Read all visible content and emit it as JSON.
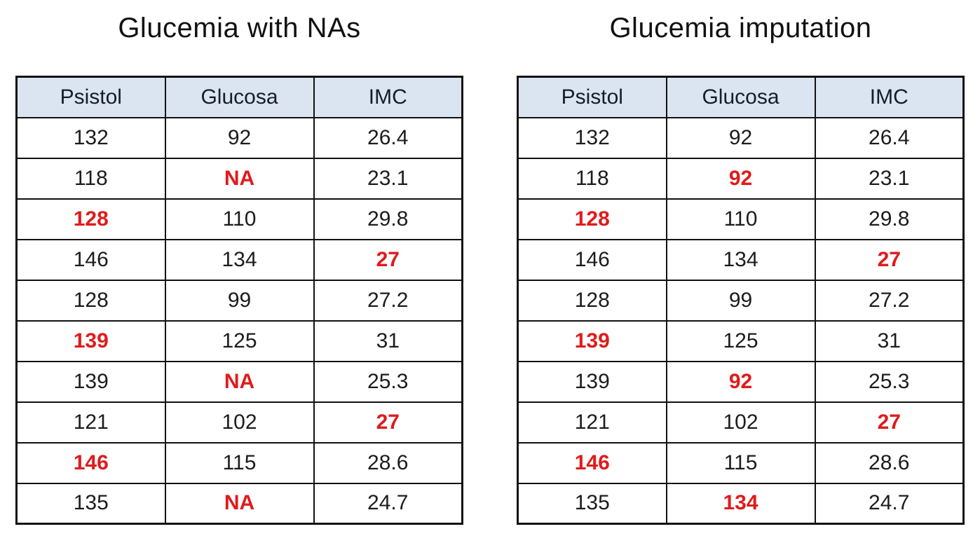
{
  "colors": {
    "background": "#ffffff",
    "header_bg": "#dbe5f1",
    "border": "#111111",
    "body_text": "#1c1c1c",
    "header_text": "#161c28",
    "highlight_red": "#e01b1b"
  },
  "tables": [
    {
      "title": "Glucemia with NAs",
      "columns": [
        "Psistol",
        "Glucosa",
        "IMC"
      ],
      "rows": [
        [
          {
            "value": "132",
            "red": false
          },
          {
            "value": "92",
            "red": false
          },
          {
            "value": "26.4",
            "red": false
          }
        ],
        [
          {
            "value": "118",
            "red": false
          },
          {
            "value": "NA",
            "red": true
          },
          {
            "value": "23.1",
            "red": false
          }
        ],
        [
          {
            "value": "128",
            "red": true
          },
          {
            "value": "110",
            "red": false
          },
          {
            "value": "29.8",
            "red": false
          }
        ],
        [
          {
            "value": "146",
            "red": false
          },
          {
            "value": "134",
            "red": false
          },
          {
            "value": "27",
            "red": true
          }
        ],
        [
          {
            "value": "128",
            "red": false
          },
          {
            "value": "99",
            "red": false
          },
          {
            "value": "27.2",
            "red": false
          }
        ],
        [
          {
            "value": "139",
            "red": true
          },
          {
            "value": "125",
            "red": false
          },
          {
            "value": "31",
            "red": false
          }
        ],
        [
          {
            "value": "139",
            "red": false
          },
          {
            "value": "NA",
            "red": true
          },
          {
            "value": "25.3",
            "red": false
          }
        ],
        [
          {
            "value": "121",
            "red": false
          },
          {
            "value": "102",
            "red": false
          },
          {
            "value": "27",
            "red": true
          }
        ],
        [
          {
            "value": "146",
            "red": true
          },
          {
            "value": "115",
            "red": false
          },
          {
            "value": "28.6",
            "red": false
          }
        ],
        [
          {
            "value": "135",
            "red": false
          },
          {
            "value": "NA",
            "red": true
          },
          {
            "value": "24.7",
            "red": false
          }
        ]
      ]
    },
    {
      "title": "Glucemia imputation",
      "columns": [
        "Psistol",
        "Glucosa",
        "IMC"
      ],
      "rows": [
        [
          {
            "value": "132",
            "red": false
          },
          {
            "value": "92",
            "red": false
          },
          {
            "value": "26.4",
            "red": false
          }
        ],
        [
          {
            "value": "118",
            "red": false
          },
          {
            "value": "92",
            "red": true
          },
          {
            "value": "23.1",
            "red": false
          }
        ],
        [
          {
            "value": "128",
            "red": true
          },
          {
            "value": "110",
            "red": false
          },
          {
            "value": "29.8",
            "red": false
          }
        ],
        [
          {
            "value": "146",
            "red": false
          },
          {
            "value": "134",
            "red": false
          },
          {
            "value": "27",
            "red": true
          }
        ],
        [
          {
            "value": "128",
            "red": false
          },
          {
            "value": "99",
            "red": false
          },
          {
            "value": "27.2",
            "red": false
          }
        ],
        [
          {
            "value": "139",
            "red": true
          },
          {
            "value": "125",
            "red": false
          },
          {
            "value": "31",
            "red": false
          }
        ],
        [
          {
            "value": "139",
            "red": false
          },
          {
            "value": "92",
            "red": true
          },
          {
            "value": "25.3",
            "red": false
          }
        ],
        [
          {
            "value": "121",
            "red": false
          },
          {
            "value": "102",
            "red": false
          },
          {
            "value": "27",
            "red": true
          }
        ],
        [
          {
            "value": "146",
            "red": true
          },
          {
            "value": "115",
            "red": false
          },
          {
            "value": "28.6",
            "red": false
          }
        ],
        [
          {
            "value": "135",
            "red": false
          },
          {
            "value": "134",
            "red": true
          },
          {
            "value": "24.7",
            "red": false
          }
        ]
      ]
    }
  ],
  "chart_data": [
    {
      "type": "table",
      "title": "Glucemia with NAs",
      "columns": [
        "Psistol",
        "Glucosa",
        "IMC"
      ],
      "rows": [
        [
          132,
          92,
          26.4
        ],
        [
          118,
          "NA",
          23.1
        ],
        [
          128,
          110,
          29.8
        ],
        [
          146,
          134,
          27
        ],
        [
          128,
          99,
          27.2
        ],
        [
          139,
          125,
          31
        ],
        [
          139,
          "NA",
          25.3
        ],
        [
          121,
          102,
          27
        ],
        [
          146,
          115,
          28.6
        ],
        [
          135,
          "NA",
          24.7
        ]
      ],
      "highlighted_cells_red": [
        [
          2,
          "Glucosa"
        ],
        [
          3,
          "Psistol"
        ],
        [
          4,
          "IMC"
        ],
        [
          6,
          "Psistol"
        ],
        [
          7,
          "Glucosa"
        ],
        [
          8,
          "IMC"
        ],
        [
          9,
          "Psistol"
        ],
        [
          10,
          "Glucosa"
        ]
      ]
    },
    {
      "type": "table",
      "title": "Glucemia imputation",
      "columns": [
        "Psistol",
        "Glucosa",
        "IMC"
      ],
      "rows": [
        [
          132,
          92,
          26.4
        ],
        [
          118,
          92,
          23.1
        ],
        [
          128,
          110,
          29.8
        ],
        [
          146,
          134,
          27
        ],
        [
          128,
          99,
          27.2
        ],
        [
          139,
          125,
          31
        ],
        [
          139,
          92,
          25.3
        ],
        [
          121,
          102,
          27
        ],
        [
          146,
          115,
          28.6
        ],
        [
          135,
          134,
          24.7
        ]
      ],
      "highlighted_cells_red": [
        [
          2,
          "Glucosa"
        ],
        [
          3,
          "Psistol"
        ],
        [
          4,
          "IMC"
        ],
        [
          6,
          "Psistol"
        ],
        [
          7,
          "Glucosa"
        ],
        [
          8,
          "IMC"
        ],
        [
          9,
          "Psistol"
        ],
        [
          10,
          "Glucosa"
        ]
      ],
      "imputed_values": {
        "row2_Glucosa": 92,
        "row7_Glucosa": 92,
        "row10_Glucosa": 134
      }
    }
  ]
}
